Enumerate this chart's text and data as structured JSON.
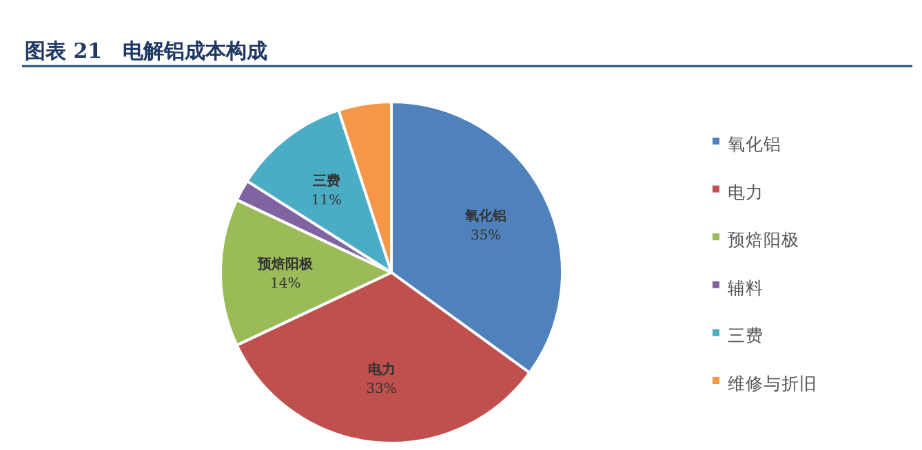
{
  "chart_data": {
    "type": "pie",
    "title": "图表 21　电解铝成本构成",
    "categories": [
      "氧化铝",
      "电力",
      "预焙阳极",
      "辅料",
      "三费",
      "维修与折旧"
    ],
    "values": [
      35,
      33,
      14,
      2,
      11,
      5
    ],
    "colors": [
      "#4f81bd",
      "#c0504d",
      "#9bbb59",
      "#8064a2",
      "#4bacc6",
      "#f79646"
    ],
    "value_labels": [
      "35%",
      "33%",
      "14%",
      null,
      "11%",
      null
    ],
    "legend": "right"
  }
}
